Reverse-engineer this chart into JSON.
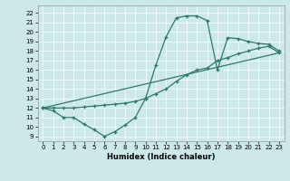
{
  "xlabel": "Humidex (Indice chaleur)",
  "bg_color": "#cde8e8",
  "line_color": "#2a7a6a",
  "xlim": [
    -0.5,
    23.5
  ],
  "ylim": [
    8.5,
    22.8
  ],
  "xticks": [
    0,
    1,
    2,
    3,
    4,
    5,
    6,
    7,
    8,
    9,
    10,
    11,
    12,
    13,
    14,
    15,
    16,
    17,
    18,
    19,
    20,
    21,
    22,
    23
  ],
  "yticks": [
    9,
    10,
    11,
    12,
    13,
    14,
    15,
    16,
    17,
    18,
    19,
    20,
    21,
    22
  ],
  "line1_x": [
    0,
    1,
    2,
    3,
    4,
    5,
    6,
    7,
    8,
    9,
    10,
    11,
    12,
    13,
    14,
    15,
    16,
    17,
    18,
    19,
    20,
    21,
    22,
    23
  ],
  "line1_y": [
    12,
    11.7,
    11,
    11,
    10.3,
    9.7,
    9,
    9.5,
    10.2,
    11.0,
    13.0,
    16.5,
    19.5,
    21.5,
    21.7,
    21.7,
    21.2,
    16.0,
    19.4,
    19.3,
    19.0,
    18.8,
    18.7,
    18.0
  ],
  "line2_x": [
    0,
    1,
    2,
    3,
    4,
    5,
    6,
    7,
    8,
    9,
    10,
    11,
    12,
    13,
    14,
    15,
    16,
    17,
    18,
    19,
    20,
    21,
    22,
    23
  ],
  "line2_y": [
    12,
    12,
    12,
    12,
    12.1,
    12.2,
    12.3,
    12.4,
    12.5,
    12.7,
    13.0,
    13.5,
    14.0,
    14.8,
    15.5,
    16.0,
    16.2,
    17.0,
    17.3,
    17.7,
    18.0,
    18.3,
    18.5,
    17.8
  ],
  "line3_x": [
    0,
    23
  ],
  "line3_y": [
    12,
    17.8
  ]
}
